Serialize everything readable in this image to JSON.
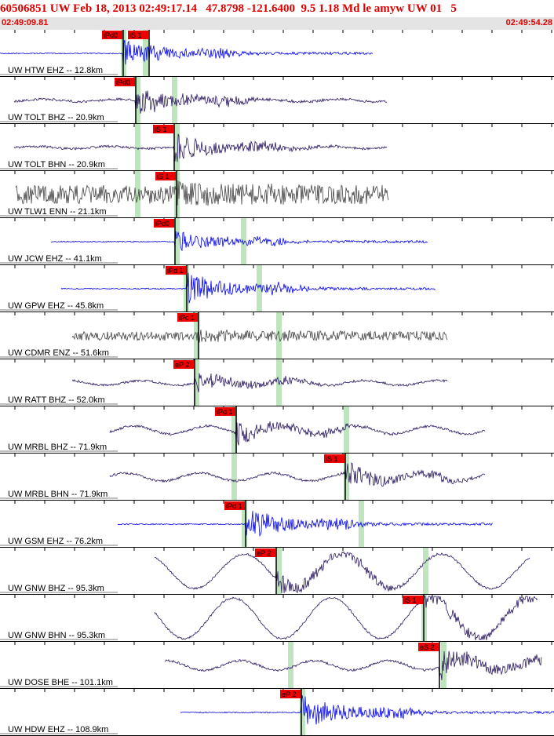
{
  "header": {
    "title": "60506851 UW Feb 18, 2013 02:49:17.14   47.8798 -121.6400  9.5 1.18 Md le amyw UW 01   5",
    "start_time": "02:49:09.81",
    "end_time": "02:49:54.28"
  },
  "traces": [
    {
      "label": "UW HTW EHZ -- 12.8km",
      "picks": [
        "iPd0",
        "iS 1"
      ]
    },
    {
      "label": "UW TOLT BHZ -- 20.9km",
      "picks": [
        "iPd0"
      ]
    },
    {
      "label": "UW TOLT BHN -- 20.9km",
      "picks": [
        "iS 1"
      ]
    },
    {
      "label": "UW TLW1 ENN -- 21.1km",
      "picks": [
        "iS 1"
      ]
    },
    {
      "label": "UW JCW EHZ -- 41.1km",
      "picks": [
        "iPd0"
      ]
    },
    {
      "label": "UW GPW EHZ -- 45.8km",
      "picks": [
        "iPd 1"
      ]
    },
    {
      "label": "UW CDMR ENZ -- 51.6km",
      "picks": [
        "iPc 1"
      ]
    },
    {
      "label": "UW RATT BHZ -- 52.0km",
      "picks": [
        "eP 2"
      ]
    },
    {
      "label": "UW MRBL BHZ -- 71.9km",
      "picks": [
        "iPd 1"
      ]
    },
    {
      "label": "UW MRBL BHN -- 71.9km",
      "picks": [
        "iS 1"
      ]
    },
    {
      "label": "UW GSM EHZ -- 76.2km",
      "picks": [
        "iPd 1"
      ]
    },
    {
      "label": "UW GNW BHZ -- 95.3km",
      "picks": [
        "eP 2"
      ]
    },
    {
      "label": "UW GNW BHN -- 95.3km",
      "picks": [
        "iS 1"
      ]
    },
    {
      "label": "UW DOSE BHE -- 101.1km",
      "picks": [
        "eS 2"
      ]
    },
    {
      "label": "UW HDW EHZ -- 108.9km",
      "picks": [
        "eP 2"
      ]
    }
  ]
}
